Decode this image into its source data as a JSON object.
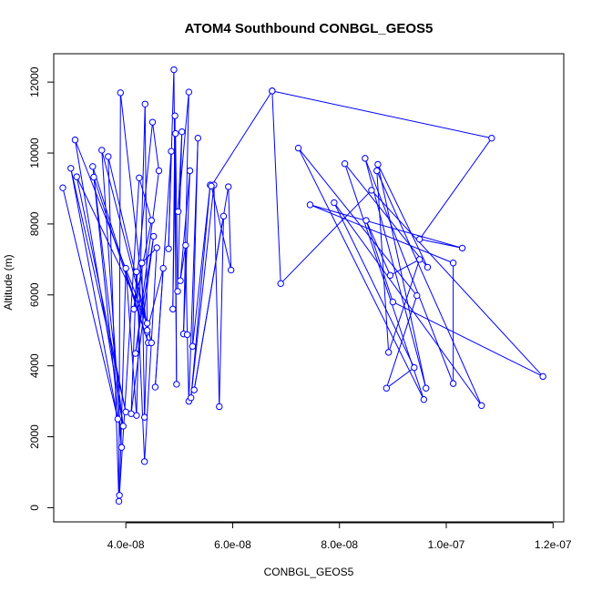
{
  "chart_data": {
    "type": "scatter",
    "title": "ATOM4 Southbound CONBGL_GEOS5",
    "xlabel": "CONBGL_GEOS5",
    "ylabel": "Altitude (m)",
    "xlim": [
      2.65e-08,
      1.22e-07
    ],
    "ylim": [
      -400,
      12800
    ],
    "x_ticks": [
      4e-08,
      6e-08,
      8e-08,
      1e-07,
      1.2e-07
    ],
    "x_tick_labels": [
      "4.0e-08",
      "6.0e-08",
      "8.0e-08",
      "1.0e-07",
      "1.2e-07"
    ],
    "y_ticks": [
      0,
      2000,
      4000,
      6000,
      8000,
      10000,
      12000
    ],
    "y_tick_labels": [
      "0",
      "2000",
      "4000",
      "6000",
      "8000",
      "10000",
      "12000"
    ],
    "grid": false,
    "series_color": "#0000ff",
    "series": [
      {
        "mode": "lines+points",
        "points": [
          [
            2.82e-08,
            9020
          ],
          [
            3.85e-08,
            2500
          ],
          [
            2.97e-08,
            9570
          ],
          [
            4e-08,
            2700
          ],
          [
            3.08e-08,
            9330
          ],
          [
            4.4e-08,
            5200
          ],
          [
            3.05e-08,
            10370
          ],
          [
            3.95e-08,
            2300
          ],
          [
            3.38e-08,
            9620
          ],
          [
            4.42e-08,
            4650
          ],
          [
            3.4e-08,
            9320
          ],
          [
            3.92e-08,
            1700
          ],
          [
            3.55e-08,
            10080
          ],
          [
            4.48e-08,
            4650
          ],
          [
            3.67e-08,
            9900
          ],
          [
            3.87e-08,
            180
          ],
          [
            3.9e-08,
            11700
          ],
          [
            4.4e-08,
            4950
          ],
          [
            4.36e-08,
            11380
          ],
          [
            4.2e-08,
            2600
          ],
          [
            4e-08,
            6750
          ],
          [
            3.88e-08,
            350
          ],
          [
            4.25e-08,
            9300
          ],
          [
            4.48e-08,
            8100
          ],
          [
            4.15e-08,
            5600
          ],
          [
            4.5e-08,
            10870
          ],
          [
            4.62e-08,
            9500
          ],
          [
            4.18e-08,
            4350
          ],
          [
            4.52e-08,
            7650
          ],
          [
            4.1e-08,
            2650
          ],
          [
            4.2e-08,
            6650
          ],
          [
            4.35e-08,
            1300
          ],
          [
            4.58e-08,
            7330
          ],
          [
            4.3e-08,
            6900
          ],
          [
            4.35e-08,
            2550
          ],
          [
            4.4e-08,
            5000
          ],
          [
            4.7e-08,
            6750
          ],
          [
            4.55e-08,
            3400
          ],
          [
            4.85e-08,
            10050
          ],
          [
            4.8e-08,
            7300
          ],
          [
            4.9e-08,
            12350
          ],
          [
            4.95e-08,
            3480
          ],
          [
            4.92e-08,
            11050
          ],
          [
            4.88e-08,
            5600
          ],
          [
            4.93e-08,
            10550
          ],
          [
            4.97e-08,
            6100
          ],
          [
            5.05e-08,
            10600
          ],
          [
            4.98e-08,
            8350
          ],
          [
            5.18e-08,
            11720
          ],
          [
            5.08e-08,
            4900
          ],
          [
            5.2e-08,
            9500
          ],
          [
            5.02e-08,
            6400
          ],
          [
            5.12e-08,
            7400
          ],
          [
            5.15e-08,
            4880
          ],
          [
            5.18e-08,
            3000
          ],
          [
            5.35e-08,
            10420
          ],
          [
            5.25e-08,
            4550
          ],
          [
            5.58e-08,
            9100
          ],
          [
            5.22e-08,
            3100
          ],
          [
            5.65e-08,
            9100
          ],
          [
            5.75e-08,
            2850
          ],
          [
            5.83e-08,
            8220
          ],
          [
            5.28e-08,
            3320
          ],
          [
            5.92e-08,
            9050
          ],
          [
            5.97e-08,
            6700
          ],
          [
            5.6e-08,
            9070
          ],
          [
            6.74e-08,
            11750
          ],
          [
            1.085e-07,
            10420
          ],
          [
            9.5e-08,
            7570
          ],
          [
            1.03e-07,
            7320
          ],
          [
            7.45e-08,
            8540
          ],
          [
            1.013e-07,
            6900
          ],
          [
            1.013e-07,
            3500
          ],
          [
            8.48e-08,
            9850
          ],
          [
            9.62e-08,
            3370
          ],
          [
            8.72e-08,
            9680
          ],
          [
            9.65e-08,
            6780
          ],
          [
            8.1e-08,
            9700
          ],
          [
            9.58e-08,
            3050
          ],
          [
            7.23e-08,
            10140
          ],
          [
            9.45e-08,
            5980
          ],
          [
            8.88e-08,
            3370
          ],
          [
            9.4e-08,
            3950
          ],
          [
            7.9e-08,
            8600
          ],
          [
            1.066e-07,
            2880
          ],
          [
            8.7e-08,
            9500
          ],
          [
            8.92e-08,
            4380
          ],
          [
            9.5e-08,
            7000
          ],
          [
            8.95e-08,
            6550
          ],
          [
            8.5e-08,
            8100
          ],
          [
            9e-08,
            5800
          ],
          [
            1.181e-07,
            3700
          ],
          [
            8.6e-08,
            8950
          ],
          [
            6.9e-08,
            6320
          ],
          [
            6.74e-08,
            11750
          ]
        ]
      }
    ]
  }
}
